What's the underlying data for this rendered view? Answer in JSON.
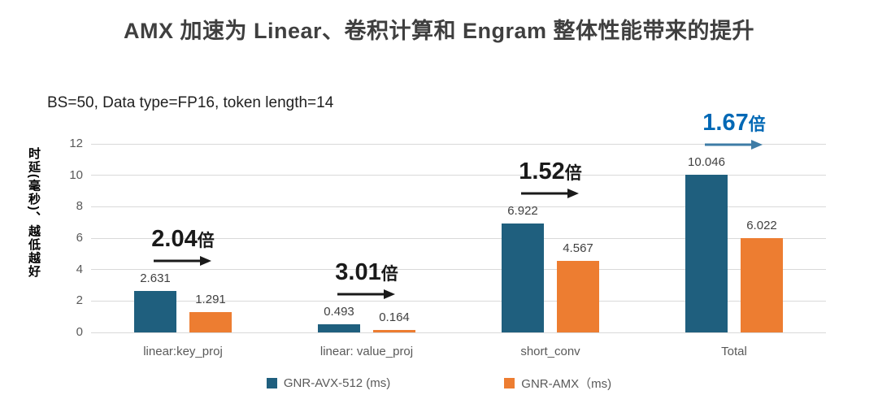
{
  "chart_data": {
    "type": "bar",
    "title": "AMX 加速为 Linear、卷积计算和 Engram 整体性能带来的提升",
    "subtitle": "BS=50, Data type=FP16, token length=14",
    "ylabel": "时延(毫秒)、越低越好",
    "xlabel": "",
    "ylim": [
      0,
      12
    ],
    "yticks": [
      0,
      2,
      4,
      6,
      8,
      10,
      12
    ],
    "grid": true,
    "legend_position": "bottom",
    "categories": [
      "linear:key_proj",
      "linear: value_proj",
      "short_conv",
      "Total"
    ],
    "series": [
      {
        "name": "GNR-AVX-512 (ms)",
        "color": "#1F5F7E",
        "values": [
          2.631,
          0.493,
          6.922,
          10.046
        ]
      },
      {
        "name": "GNR-AMX（ms)",
        "color": "#ED7D31",
        "values": [
          1.291,
          0.164,
          4.567,
          6.022
        ]
      }
    ],
    "annotations": [
      {
        "value": "2.04",
        "unit": "倍",
        "text_color": "#1a1a1a",
        "arrow_color": "#1a1a1a"
      },
      {
        "value": "3.01",
        "unit": "倍",
        "text_color": "#1a1a1a",
        "arrow_color": "#1a1a1a"
      },
      {
        "value": "1.52",
        "unit": "倍",
        "text_color": "#1a1a1a",
        "arrow_color": "#1a1a1a"
      },
      {
        "value": "1.67",
        "unit": "倍",
        "text_color": "#0068B5",
        "arrow_color": "#3E7CA6"
      }
    ]
  }
}
